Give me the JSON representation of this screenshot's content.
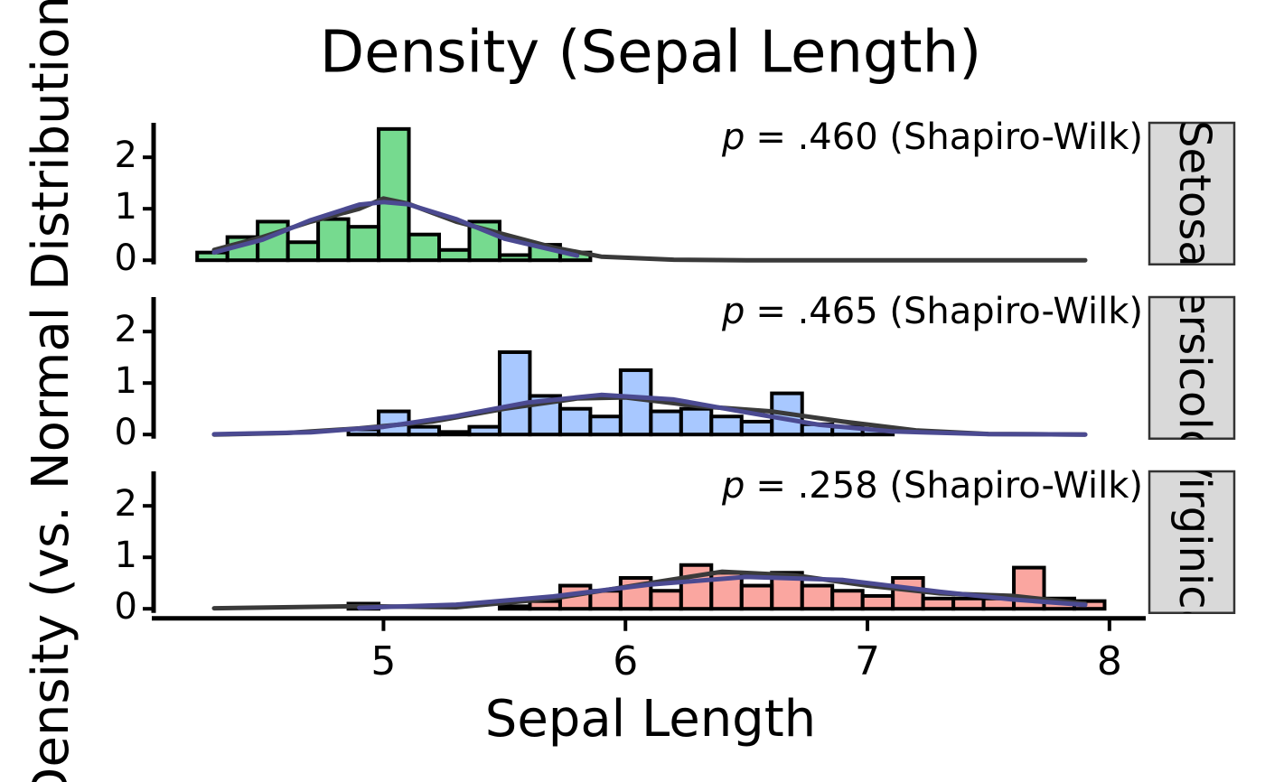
{
  "chart_data": {
    "type": "histogram",
    "title": "Density (Sepal Length)",
    "xlabel": "Sepal Length",
    "ylabel": "Density (vs. Normal Distribution)",
    "xlim": [
      4.05,
      8.15
    ],
    "xticks": [
      5,
      6,
      7,
      8
    ],
    "ylim": [
      -0.08,
      2.67
    ],
    "yticks": [
      0,
      1,
      2
    ],
    "panels": [
      {
        "strip": "Setosa",
        "annotation_prefix": "p",
        "annotation": "= .460 (Shapiro-Wilk)",
        "color": "#2dc653",
        "bins": [
          4.23,
          4.355,
          4.48,
          4.605,
          4.73,
          4.855,
          4.98,
          5.105,
          5.23,
          5.355,
          5.48,
          5.605,
          5.73,
          5.855
        ],
        "values": [
          0.15,
          0.45,
          0.75,
          0.35,
          0.8,
          0.65,
          2.55,
          0.5,
          0.2,
          0.75,
          0.1,
          0.3,
          0.15
        ],
        "density": {
          "color": "#3a3a3a",
          "x": [
            4.3,
            4.5,
            4.7,
            4.9,
            5.0,
            5.1,
            5.3,
            5.5,
            5.7,
            5.9,
            6.2,
            6.5,
            7.0,
            7.9
          ],
          "y": [
            0.2,
            0.45,
            0.75,
            1.0,
            1.2,
            1.1,
            0.75,
            0.5,
            0.25,
            0.07,
            0.01,
            0,
            0,
            0
          ]
        },
        "normal": {
          "color": "#4b4a91",
          "x": [
            4.3,
            4.5,
            4.7,
            4.9,
            5.0,
            5.1,
            5.3,
            5.5,
            5.8
          ],
          "y": [
            0.15,
            0.4,
            0.78,
            1.08,
            1.13,
            1.09,
            0.8,
            0.42,
            0.09
          ]
        }
      },
      {
        "strip": "Versicolor",
        "annotation_prefix": "p",
        "annotation": "= .465 (Shapiro-Wilk)",
        "color": "#7aaaff",
        "bins": [
          4.855,
          4.98,
          5.105,
          5.23,
          5.355,
          5.48,
          5.605,
          5.73,
          5.855,
          5.98,
          6.105,
          6.23,
          6.355,
          6.48,
          6.605,
          6.73,
          6.855,
          6.98,
          7.105
        ],
        "values": [
          0.1,
          0.45,
          0.15,
          0.05,
          0.15,
          1.6,
          0.75,
          0.5,
          0.35,
          1.25,
          0.45,
          0.5,
          0.35,
          0.25,
          0.8,
          0.2,
          0.15,
          0.1
        ],
        "density": {
          "color": "#3a3a3a",
          "x": [
            4.3,
            4.6,
            4.9,
            5.2,
            5.5,
            5.8,
            6.0,
            6.3,
            6.6,
            6.9,
            7.2,
            7.5,
            7.9
          ],
          "y": [
            0,
            0.03,
            0.12,
            0.25,
            0.5,
            0.7,
            0.72,
            0.55,
            0.45,
            0.25,
            0.08,
            0.01,
            0
          ]
        },
        "normal": {
          "color": "#4b4a91",
          "x": [
            4.3,
            4.7,
            5.0,
            5.3,
            5.6,
            5.9,
            6.2,
            6.5,
            6.8,
            7.1,
            7.5,
            7.9
          ],
          "y": [
            0.005,
            0.044,
            0.149,
            0.36,
            0.625,
            0.77,
            0.68,
            0.43,
            0.19,
            0.06,
            0.008,
            0
          ]
        }
      },
      {
        "strip": "Virginica",
        "annotation_prefix": "p",
        "annotation": "= .258 (Shapiro-Wilk)",
        "color": "#f8766d",
        "bins": [
          4.855,
          4.98,
          5.105,
          5.23,
          5.355,
          5.48,
          5.605,
          5.73,
          5.855,
          5.98,
          6.105,
          6.23,
          6.355,
          6.48,
          6.605,
          6.73,
          6.855,
          6.98,
          7.105,
          7.23,
          7.355,
          7.48,
          7.605,
          7.73,
          7.855,
          7.98
        ],
        "values": [
          0.1,
          0,
          0,
          0,
          0,
          0.05,
          0.15,
          0.45,
          0.35,
          0.6,
          0.35,
          0.85,
          0.7,
          0.45,
          0.7,
          0.45,
          0.35,
          0.25,
          0.6,
          0.2,
          0.2,
          0.2,
          0.8,
          0.2,
          0.15
        ],
        "density": {
          "color": "#3a3a3a",
          "x": [
            4.3,
            4.9,
            5.3,
            5.7,
            6.1,
            6.4,
            6.7,
            7.0,
            7.3,
            7.6,
            7.9
          ],
          "y": [
            0.01,
            0.05,
            0.03,
            0.2,
            0.5,
            0.72,
            0.65,
            0.45,
            0.3,
            0.25,
            0.1
          ]
        },
        "normal": {
          "color": "#4b4a91",
          "x": [
            4.9,
            5.3,
            5.7,
            6.1,
            6.5,
            6.9,
            7.3,
            7.6,
            7.9
          ],
          "y": [
            0.019,
            0.08,
            0.24,
            0.47,
            0.62,
            0.56,
            0.33,
            0.18,
            0.075
          ]
        }
      }
    ]
  }
}
